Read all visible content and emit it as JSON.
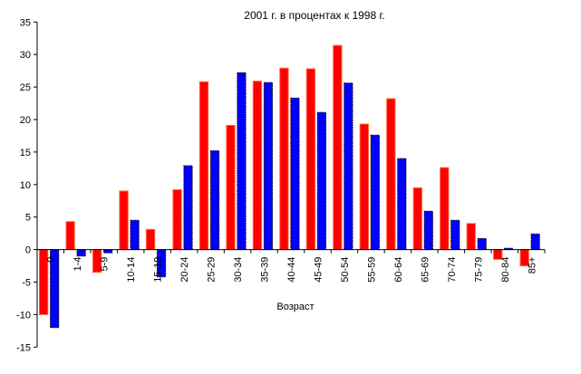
{
  "chart_data": {
    "type": "bar",
    "title": "2001 г.   в процентах к 1998 г.",
    "xlabel": "Возраст",
    "ylabel": "",
    "ylim": [
      -15,
      35
    ],
    "yticks": [
      "-15",
      "-10",
      "-5",
      "0",
      "5",
      "10",
      "15",
      "20",
      "25",
      "30",
      "35"
    ],
    "grid": false,
    "legend": "none",
    "categories": [
      "0",
      "1-4",
      "5-9",
      "10-14",
      "15-19",
      "20-24",
      "25-29",
      "30-34",
      "35-39",
      "40-44",
      "45-49",
      "50-54",
      "55-59",
      "60-64",
      "65-69",
      "70-74",
      "75-79",
      "80-84",
      "85+"
    ],
    "series": [
      {
        "name": "red",
        "color": "#ff0000",
        "border": "#ff6633",
        "values": [
          -10.0,
          4.3,
          -3.5,
          9.0,
          3.1,
          9.2,
          25.8,
          19.1,
          25.9,
          27.9,
          27.8,
          31.4,
          19.3,
          23.2,
          9.5,
          12.6,
          4.0,
          -1.5,
          -2.5
        ]
      },
      {
        "name": "blue",
        "color": "#0000ff",
        "border": "#000000",
        "values": [
          -12.0,
          -1.0,
          -0.5,
          4.5,
          -4.2,
          12.9,
          15.2,
          27.2,
          25.7,
          23.3,
          21.1,
          25.6,
          17.6,
          14.0,
          5.9,
          4.5,
          1.7,
          0.2,
          2.4
        ]
      }
    ]
  }
}
